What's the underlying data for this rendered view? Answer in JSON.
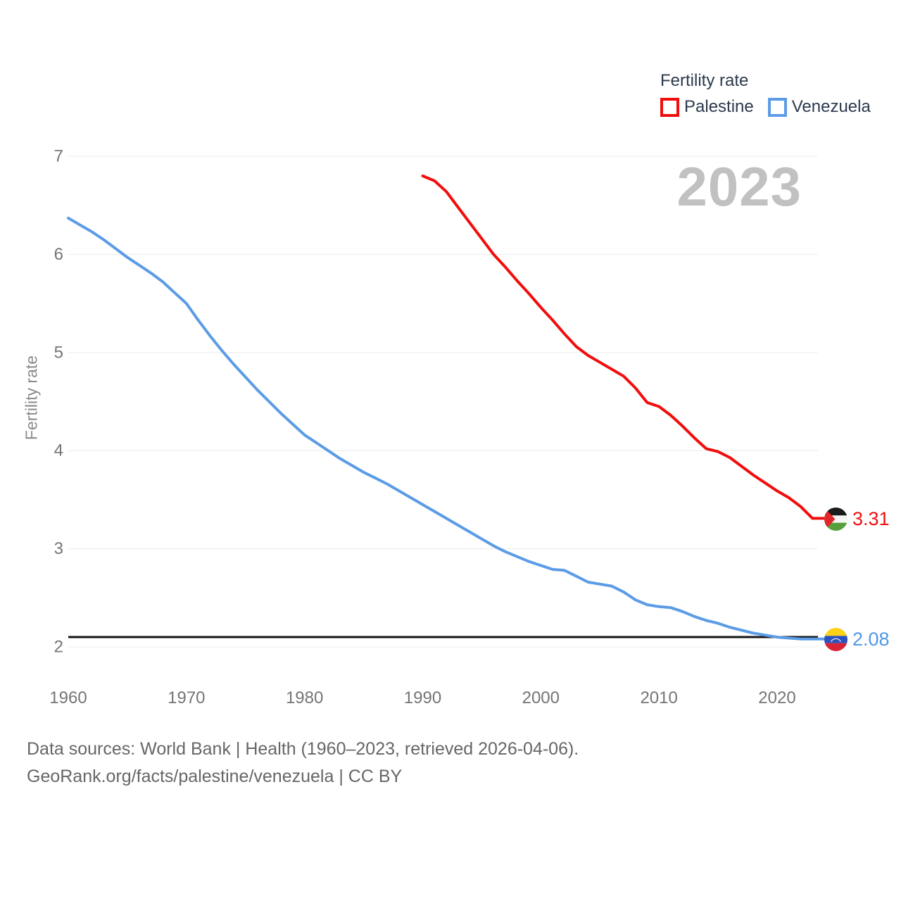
{
  "legend": {
    "title": "Fertility rate",
    "series": [
      {
        "label": "Palestine",
        "color": "#f20d0d"
      },
      {
        "label": "Venezuela",
        "color": "#5c9ce6"
      }
    ]
  },
  "watermark": "2023",
  "y_axis": {
    "label": "Fertility rate",
    "ticks": [
      7,
      6,
      5,
      4,
      3,
      2
    ]
  },
  "x_axis": {
    "ticks": [
      1960,
      1970,
      1980,
      1990,
      2000,
      2010,
      2020
    ]
  },
  "end_labels": [
    {
      "series": "Palestine",
      "value": "3.31",
      "flag": "palestine-flag-icon",
      "color": "#f20d0d"
    },
    {
      "series": "Venezuela",
      "value": "2.08",
      "flag": "venezuela-flag-icon",
      "color": "#4f97e8"
    }
  ],
  "footer": {
    "line1": "Data sources: World Bank | Health (1960–2023, retrieved 2026-04-06).",
    "line2": "GeoRank.org/facts/palestine/venezuela | CC BY"
  },
  "chart_data": {
    "type": "line",
    "title": "Fertility rate",
    "ylabel": "Fertility rate",
    "xlim": [
      1960,
      2023
    ],
    "ylim": [
      2,
      7
    ],
    "grid": true,
    "legend_position": "top-right",
    "reference_line": {
      "value": 2.1,
      "color": "#141414"
    },
    "series": [
      {
        "name": "Palestine",
        "color": "#f20d0d",
        "x_start": 1990,
        "x_end": 2023,
        "end_label": "3.31",
        "values": [
          6.8,
          6.75,
          6.64,
          6.48,
          6.32,
          6.16,
          6.0,
          5.87,
          5.73,
          5.6,
          5.46,
          5.33,
          5.19,
          5.06,
          4.97,
          4.9,
          4.83,
          4.76,
          4.64,
          4.49,
          4.45,
          4.36,
          4.25,
          4.13,
          4.02,
          3.99,
          3.93,
          3.84,
          3.75,
          3.67,
          3.59,
          3.52,
          3.43,
          3.31
        ]
      },
      {
        "name": "Venezuela",
        "color": "#5c9ce6",
        "x_start": 1960,
        "x_end": 2023,
        "end_label": "2.08",
        "values": [
          6.37,
          6.3,
          6.23,
          6.15,
          6.06,
          5.97,
          5.89,
          5.81,
          5.72,
          5.61,
          5.5,
          5.33,
          5.17,
          5.02,
          4.88,
          4.75,
          4.62,
          4.5,
          4.38,
          4.27,
          4.16,
          4.08,
          4.0,
          3.92,
          3.85,
          3.78,
          3.72,
          3.66,
          3.59,
          3.52,
          3.45,
          3.38,
          3.31,
          3.24,
          3.17,
          3.1,
          3.03,
          2.97,
          2.92,
          2.87,
          2.83,
          2.79,
          2.78,
          2.72,
          2.66,
          2.64,
          2.62,
          2.56,
          2.48,
          2.43,
          2.41,
          2.4,
          2.36,
          2.31,
          2.27,
          2.24,
          2.2,
          2.17,
          2.14,
          2.12,
          2.1,
          2.09,
          2.08,
          2.08
        ]
      }
    ]
  }
}
